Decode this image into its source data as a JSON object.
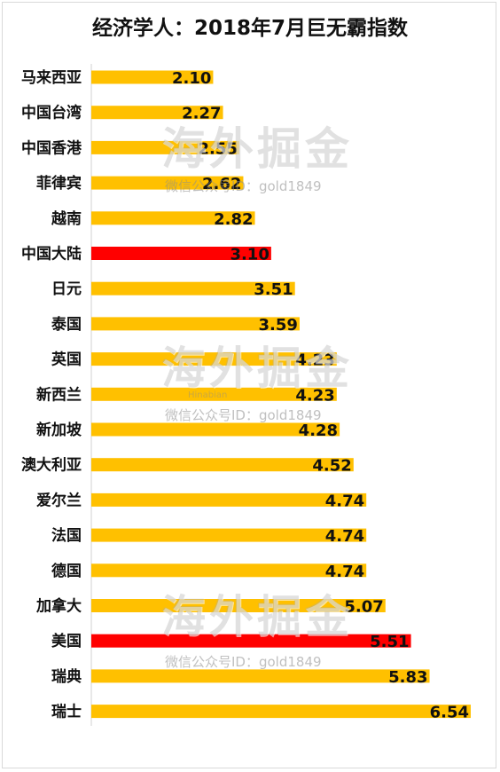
{
  "chart_data": {
    "type": "bar",
    "orientation": "horizontal",
    "title": "经济学人：2018年7月巨无霸指数",
    "categories": [
      "马来西亚",
      "中国台湾",
      "中国香港",
      "菲律宾",
      "越南",
      "中国大陆",
      "日元",
      "泰国",
      "英国",
      "新西兰",
      "新加坡",
      "澳大利亚",
      "爱尔兰",
      "法国",
      "德国",
      "加拿大",
      "美国",
      "瑞典",
      "瑞士"
    ],
    "values": [
      2.1,
      2.27,
      2.55,
      2.62,
      2.82,
      3.1,
      3.51,
      3.59,
      4.23,
      4.23,
      4.28,
      4.52,
      4.74,
      4.74,
      4.74,
      5.07,
      5.51,
      5.83,
      6.54
    ],
    "value_labels": [
      "2.10",
      "2.27",
      "2.55",
      "2.62",
      "2.82",
      "3.10",
      "3.51",
      "3.59",
      "4.23",
      "4.23",
      "4.28",
      "4.52",
      "4.74",
      "4.74",
      "4.74",
      "5.07",
      "5.51",
      "5.83",
      "6.54"
    ],
    "highlight": [
      "中国大陆",
      "美国"
    ],
    "xlim": [
      0,
      6.54
    ],
    "grid": false,
    "legend": "none",
    "colors": {
      "bar": "#FFC000",
      "highlight": "#FF0000",
      "text": "#111111"
    }
  },
  "watermark": {
    "logo_text": "海外掘金",
    "wechat_text": "微信公众号ID：gold1849",
    "pinyin_text": "Hinabian"
  }
}
